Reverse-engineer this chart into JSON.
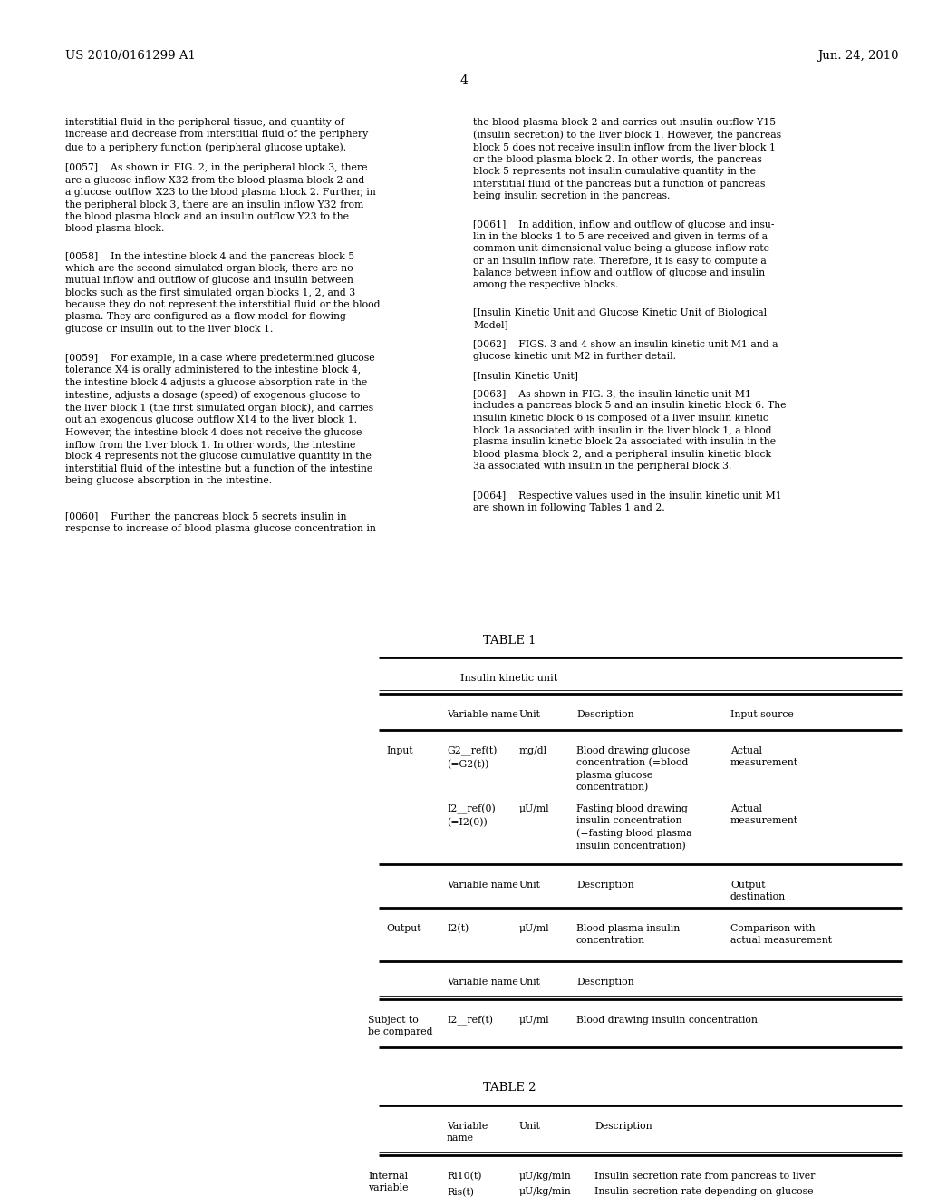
{
  "page_number": "4",
  "patent_left": "US 2010/0161299 A1",
  "patent_right": "Jun. 24, 2010",
  "background_color": "#ffffff",
  "text_color": "#000000",
  "left_col_texts": [
    "interstitial fluid in the peripheral tissue, and quantity of\nincrease and decrease from interstitial fluid of the periphery\ndue to a periphery function (peripheral glucose uptake).",
    "[0057]    As shown in FIG. 2, in the peripheral block 3, there\nare a glucose inflow X32 from the blood plasma block 2 and\na glucose outflow X23 to the blood plasma block 2. Further, in\nthe peripheral block 3, there are an insulin inflow Y32 from\nthe blood plasma block and an insulin outflow Y23 to the\nblood plasma block.",
    "[0058]    In the intestine block 4 and the pancreas block 5\nwhich are the second simulated organ block, there are no\nmutual inflow and outflow of glucose and insulin between\nblocks such as the first simulated organ blocks 1, 2, and 3\nbecause they do not represent the interstitial fluid or the blood\nplasma. They are configured as a flow model for flowing\nglucose or insulin out to the liver block 1.",
    "[0059]    For example, in a case where predetermined glucose\ntolerance X4 is orally administered to the intestine block 4,\nthe intestine block 4 adjusts a glucose absorption rate in the\nintestine, adjusts a dosage (speed) of exogenous glucose to\nthe liver block 1 (the first simulated organ block), and carries\nout an exogenous glucose outflow X14 to the liver block 1.\nHowever, the intestine block 4 does not receive the glucose\ninflow from the liver block 1. In other words, the intestine\nblock 4 represents not the glucose cumulative quantity in the\ninterstitial fluid of the intestine but a function of the intestine\nbeing glucose absorption in the intestine.",
    "[0060]    Further, the pancreas block 5 secrets insulin in\nresponse to increase of blood plasma glucose concentration in"
  ],
  "right_col_texts": [
    "the blood plasma block 2 and carries out insulin outflow Y15\n(insulin secretion) to the liver block 1. However, the pancreas\nblock 5 does not receive insulin inflow from the liver block 1\nor the blood plasma block 2. In other words, the pancreas\nblock 5 represents not insulin cumulative quantity in the\ninterstitial fluid of the pancreas but a function of pancreas\nbeing insulin secretion in the pancreas.",
    "[0061]    In addition, inflow and outflow of glucose and insu-\nlin in the blocks 1 to 5 are received and given in terms of a\ncommon unit dimensional value being a glucose inflow rate\nor an insulin inflow rate. Therefore, it is easy to compute a\nbalance between inflow and outflow of glucose and insulin\namong the respective blocks.",
    "[Insulin Kinetic Unit and Glucose Kinetic Unit of Biological\nModel]",
    "[0062]    FIGS. 3 and 4 show an insulin kinetic unit M1 and a\nglucose kinetic unit M2 in further detail.",
    "[Insulin Kinetic Unit]",
    "[0063]    As shown in FIG. 3, the insulin kinetic unit M1\nincludes a pancreas block 5 and an insulin kinetic block 6. The\ninsulin kinetic block 6 is composed of a liver insulin kinetic\nblock 1a associated with insulin in the liver block 1, a blood\nplasma insulin kinetic block 2a associated with insulin in the\nblood plasma block 2, and a peripheral insulin kinetic block\n3a associated with insulin in the peripheral block 3.",
    "[0064]    Respective values used in the insulin kinetic unit M1\nare shown in following Tables 1 and 2."
  ],
  "table1_title": "TABLE 1",
  "table1_subtitle": "Insulin kinetic unit",
  "table2_title": "TABLE 2"
}
